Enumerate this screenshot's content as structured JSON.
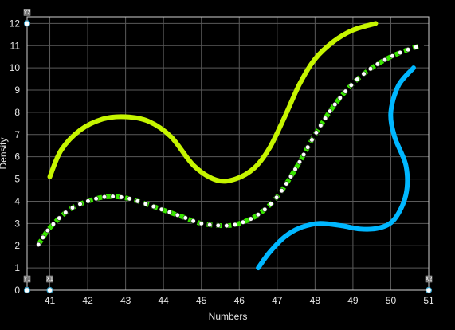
{
  "chart_data": {
    "type": "line",
    "title": "",
    "xlabel": "Numbers",
    "ylabel": "Density",
    "xlim": [
      40.4,
      51
    ],
    "ylim": [
      0,
      12.3
    ],
    "xticks": [
      41,
      42,
      43,
      44,
      45,
      46,
      47,
      48,
      49,
      50,
      51
    ],
    "yticks": [
      0,
      1,
      2,
      3,
      4,
      5,
      6,
      7,
      8,
      9,
      10,
      11,
      12
    ],
    "grid": true,
    "background": "#000000",
    "series": [
      {
        "color": "#c6f500",
        "style": "solid",
        "points": [
          [
            41.0,
            5.1
          ],
          [
            41.3,
            6.3
          ],
          [
            41.8,
            7.2
          ],
          [
            42.4,
            7.7
          ],
          [
            43.0,
            7.8
          ],
          [
            43.6,
            7.6
          ],
          [
            44.2,
            6.9
          ],
          [
            44.8,
            5.6
          ],
          [
            45.4,
            4.95
          ],
          [
            45.9,
            5.0
          ],
          [
            46.4,
            5.5
          ],
          [
            46.8,
            6.4
          ],
          [
            47.2,
            7.8
          ],
          [
            47.6,
            9.3
          ],
          [
            48.0,
            10.4
          ],
          [
            48.5,
            11.2
          ],
          [
            49.0,
            11.7
          ],
          [
            49.6,
            12.0
          ]
        ]
      },
      {
        "color": "#39e600",
        "style": "dashed-markers",
        "points": [
          [
            40.7,
            2.05
          ],
          [
            41.0,
            2.8
          ],
          [
            41.5,
            3.6
          ],
          [
            42.0,
            4.0
          ],
          [
            42.5,
            4.2
          ],
          [
            43.0,
            4.15
          ],
          [
            43.5,
            3.9
          ],
          [
            44.0,
            3.6
          ],
          [
            44.5,
            3.3
          ],
          [
            45.0,
            3.0
          ],
          [
            45.6,
            2.9
          ],
          [
            46.0,
            3.0
          ],
          [
            46.5,
            3.4
          ],
          [
            47.0,
            4.2
          ],
          [
            47.5,
            5.5
          ],
          [
            48.0,
            7.0
          ],
          [
            48.5,
            8.3
          ],
          [
            49.0,
            9.3
          ],
          [
            49.5,
            10.0
          ],
          [
            50.0,
            10.5
          ],
          [
            50.5,
            10.85
          ],
          [
            50.8,
            11.0
          ]
        ]
      },
      {
        "color": "#00b7ff",
        "style": "solid",
        "points": [
          [
            46.5,
            1.0
          ],
          [
            46.8,
            1.7
          ],
          [
            47.2,
            2.4
          ],
          [
            47.6,
            2.8
          ],
          [
            48.1,
            3.0
          ],
          [
            48.7,
            2.9
          ],
          [
            49.2,
            2.75
          ],
          [
            49.7,
            2.8
          ],
          [
            50.1,
            3.2
          ],
          [
            50.4,
            4.3
          ],
          [
            50.4,
            5.6
          ],
          [
            50.1,
            6.9
          ],
          [
            50.0,
            8.0
          ],
          [
            50.2,
            9.2
          ],
          [
            50.6,
            10.0
          ]
        ]
      }
    ],
    "corner_markers": [
      {
        "label": "Y2",
        "x": 40.4,
        "y": 12
      },
      {
        "label": "Y1",
        "x": 40.4,
        "y": 0
      },
      {
        "label": "X1",
        "x": 41,
        "y": 0
      },
      {
        "label": "X2",
        "x": 51,
        "y": 0
      }
    ]
  }
}
